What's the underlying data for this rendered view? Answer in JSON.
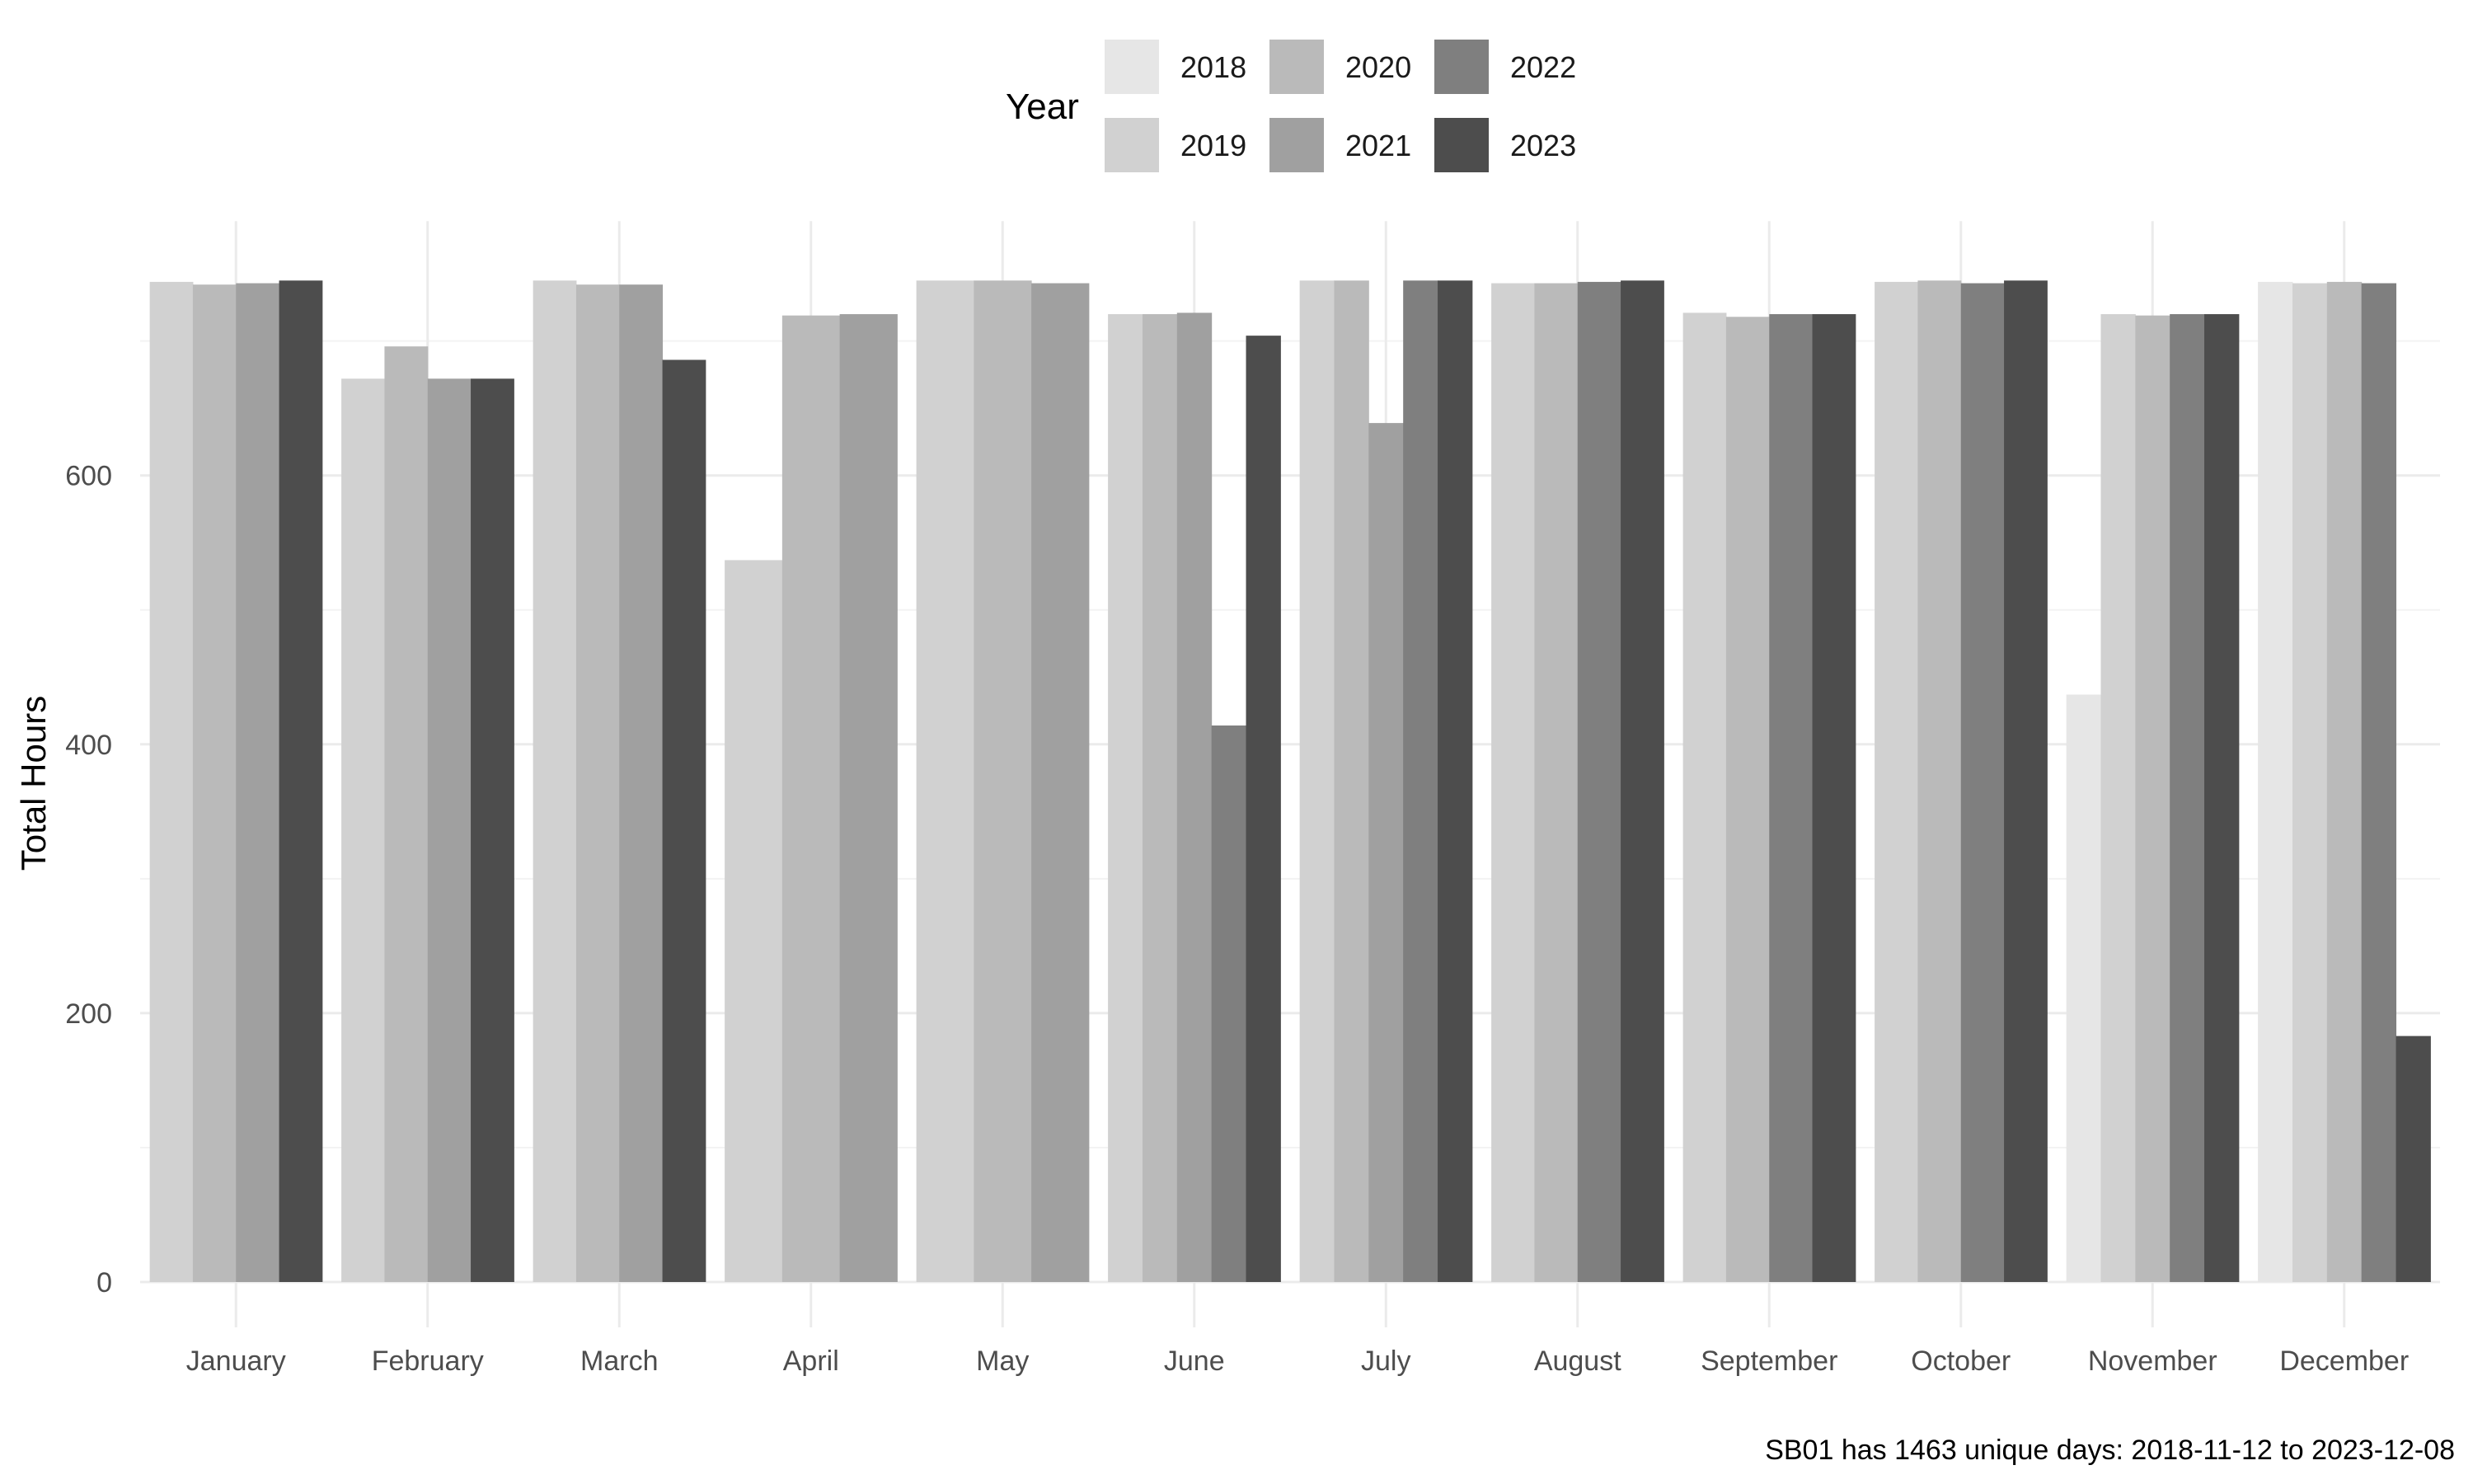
{
  "chart_data": {
    "type": "bar",
    "title": "",
    "xlabel": "",
    "ylabel": "Total Hours",
    "caption": "SB01 has 1463 unique days: 2018-11-12 to 2023-12-08",
    "legend_title": "Year",
    "legend_position": "top",
    "grid": true,
    "ylim": [
      0,
      780
    ],
    "yticks": [
      0,
      200,
      400,
      600
    ],
    "categories": [
      "January",
      "February",
      "March",
      "April",
      "May",
      "June",
      "July",
      "August",
      "September",
      "October",
      "November",
      "December"
    ],
    "series": [
      {
        "name": "2018",
        "color": "#e6e6e6",
        "values": [
          null,
          null,
          null,
          null,
          null,
          null,
          null,
          null,
          null,
          null,
          437,
          744
        ]
      },
      {
        "name": "2019",
        "color": "#d1d1d1",
        "values": [
          744,
          672,
          745,
          537,
          745,
          720,
          745,
          743,
          721,
          744,
          720,
          743
        ]
      },
      {
        "name": "2020",
        "color": "#bababa",
        "values": [
          742,
          696,
          742,
          719,
          745,
          720,
          745,
          743,
          718,
          745,
          719,
          744
        ]
      },
      {
        "name": "2021",
        "color": "#a0a0a0",
        "values": [
          743,
          672,
          742,
          720,
          743,
          721,
          639,
          null,
          null,
          null,
          null,
          null
        ]
      },
      {
        "name": "2022",
        "color": "#7f7f7f",
        "values": [
          null,
          null,
          null,
          null,
          null,
          414,
          745,
          744,
          720,
          743,
          720,
          743
        ]
      },
      {
        "name": "2023",
        "color": "#4d4d4d",
        "values": [
          745,
          672,
          686,
          null,
          null,
          704,
          745,
          745,
          720,
          745,
          720,
          183
        ]
      }
    ]
  }
}
